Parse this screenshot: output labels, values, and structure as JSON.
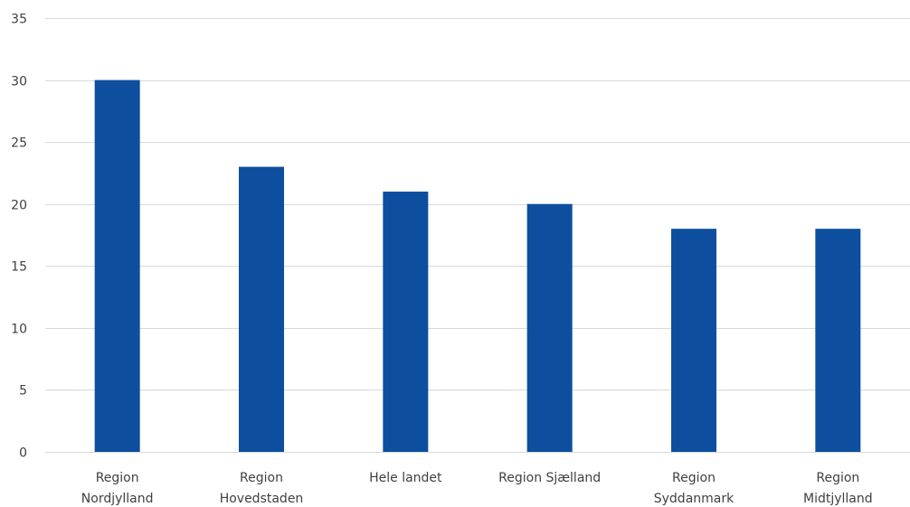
{
  "chart_data": {
    "type": "bar",
    "title": "",
    "xlabel": "",
    "ylabel": "",
    "categories": [
      [
        "Region",
        "Nordjylland"
      ],
      [
        "Region",
        "Hovedstaden"
      ],
      [
        "Hele landet"
      ],
      [
        "Region Sjælland"
      ],
      [
        "Region",
        "Syddanmark"
      ],
      [
        "Region",
        "Midtjylland"
      ]
    ],
    "values": [
      30,
      23,
      21,
      20,
      18,
      18
    ],
    "ylim": [
      0,
      35
    ],
    "yticks": [
      0,
      5,
      10,
      15,
      20,
      25,
      30,
      35
    ],
    "grid": true,
    "legend": "none",
    "bar_color": "#0d4f9e"
  }
}
